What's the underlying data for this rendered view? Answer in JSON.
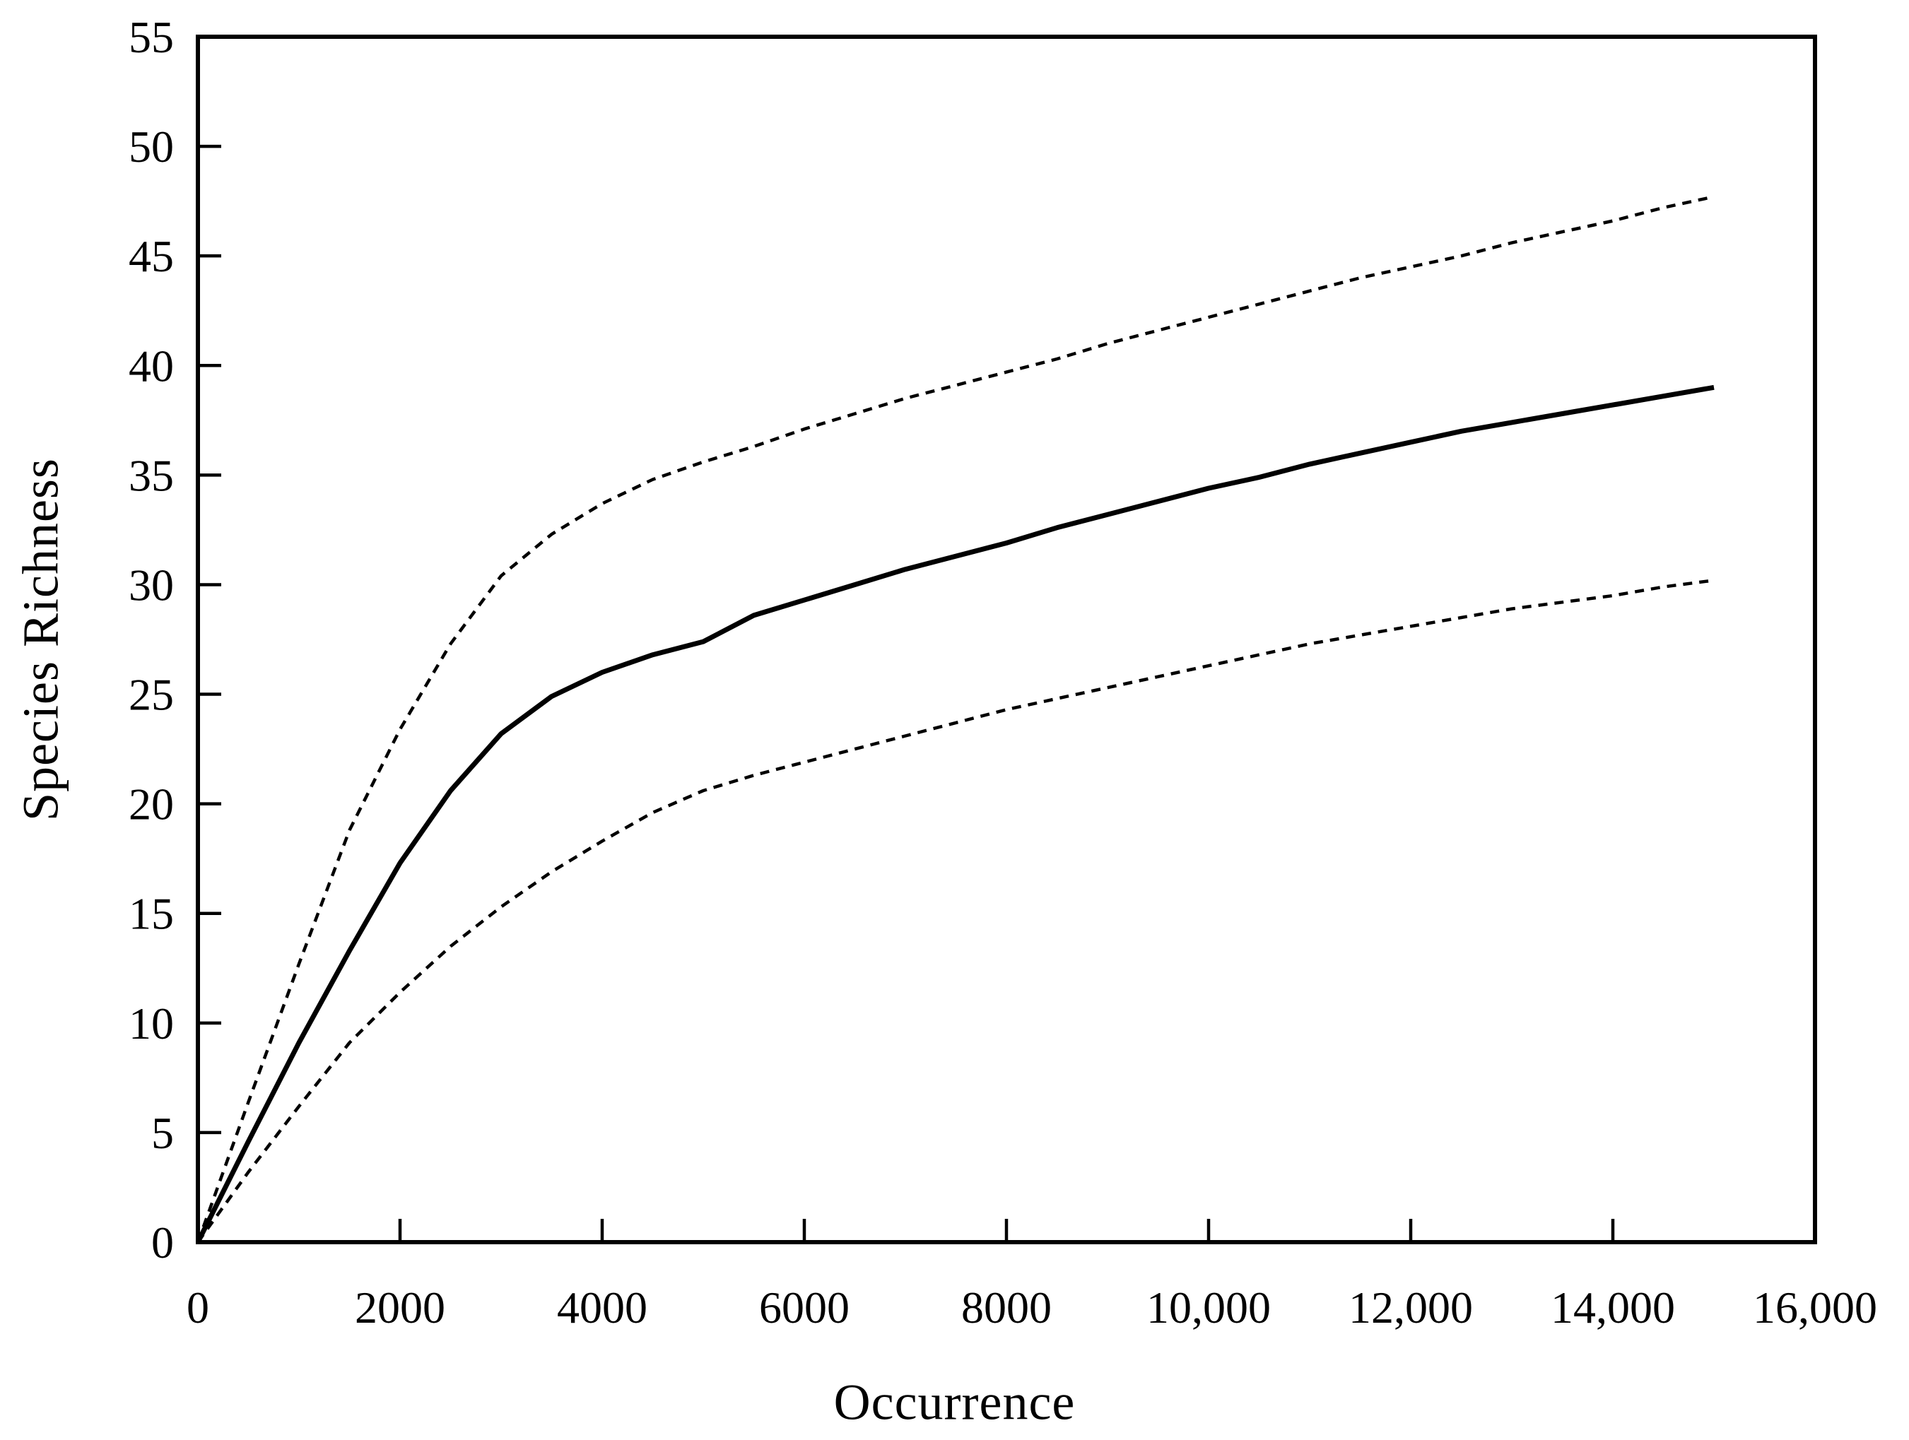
{
  "figure": {
    "xlabel": "Occurrence",
    "ylabel": "Species Richness",
    "background_color": "#ffffff",
    "line_color": "#000000"
  },
  "chart_data": {
    "type": "line",
    "title": "",
    "xlabel": "Occurrence",
    "ylabel": "Species Richness",
    "xlim": [
      0,
      16000
    ],
    "ylim": [
      0,
      55
    ],
    "x_ticks": [
      0,
      2000,
      4000,
      6000,
      8000,
      10000,
      12000,
      14000,
      16000
    ],
    "x_tick_labels": [
      "0",
      "2000",
      "4000",
      "6000",
      "8000",
      "10,000",
      "12,000",
      "14,000",
      "16,000"
    ],
    "y_ticks": [
      0,
      5,
      10,
      15,
      20,
      25,
      30,
      35,
      40,
      45,
      50,
      55
    ],
    "y_tick_labels": [
      "0",
      "5",
      "10",
      "15",
      "20",
      "25",
      "30",
      "35",
      "40",
      "45",
      "50",
      "55"
    ],
    "grid": false,
    "frame": true,
    "legend": "none",
    "tick_direction": "in",
    "x": [
      0,
      500,
      1000,
      1500,
      2000,
      2500,
      3000,
      3500,
      4000,
      4500,
      5000,
      5500,
      6000,
      6500,
      7000,
      7500,
      8000,
      8500,
      9000,
      9500,
      10000,
      10500,
      11000,
      11500,
      12000,
      12500,
      13000,
      13500,
      14000,
      14500,
      15000
    ],
    "series": [
      {
        "name": "solid-line",
        "style": "solid",
        "stroke_width": 7,
        "y": [
          0,
          4.6,
          9.1,
          13.3,
          17.3,
          20.6,
          23.2,
          24.9,
          26.0,
          26.8,
          27.4,
          28.6,
          29.3,
          30.0,
          30.7,
          31.3,
          31.9,
          32.6,
          33.2,
          33.8,
          34.4,
          34.9,
          35.5,
          36.0,
          36.5,
          37.0,
          37.4,
          37.8,
          38.2,
          38.6,
          39.0
        ]
      },
      {
        "name": "upper-dashed-line",
        "style": "dashed",
        "stroke_width": 4.5,
        "y": [
          0,
          6.4,
          12.7,
          18.8,
          23.4,
          27.3,
          30.4,
          32.3,
          33.7,
          34.8,
          35.6,
          36.3,
          37.1,
          37.8,
          38.5,
          39.1,
          39.7,
          40.3,
          41.0,
          41.6,
          42.2,
          42.8,
          43.4,
          44.0,
          44.5,
          45.0,
          45.6,
          46.1,
          46.6,
          47.2,
          47.7
        ]
      },
      {
        "name": "lower-dashed-line",
        "style": "dashed",
        "stroke_width": 4.5,
        "y": [
          0,
          3.2,
          6.2,
          9.1,
          11.4,
          13.5,
          15.3,
          16.9,
          18.3,
          19.6,
          20.6,
          21.3,
          21.9,
          22.5,
          23.1,
          23.7,
          24.3,
          24.8,
          25.3,
          25.8,
          26.3,
          26.8,
          27.3,
          27.7,
          28.1,
          28.5,
          28.9,
          29.2,
          29.5,
          29.9,
          30.2
        ]
      }
    ]
  }
}
